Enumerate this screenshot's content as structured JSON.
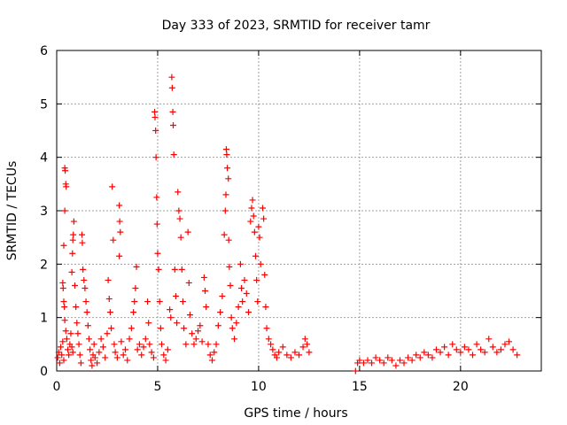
{
  "chart_data": {
    "type": "scatter",
    "title": "Day 333 of 2023, SRMTID for receiver tamr",
    "xlabel": "GPS time / hours",
    "ylabel": "SRMTID / TECUs",
    "xlim": [
      0,
      24
    ],
    "ylim": [
      0,
      6
    ],
    "xticks": [
      0,
      5,
      10,
      15,
      20
    ],
    "yticks": [
      0,
      1,
      2,
      3,
      4,
      5,
      6
    ],
    "grid": true,
    "marker": "+",
    "series": [
      {
        "name": "SRMTID",
        "color": "#ff0000",
        "points": [
          [
            0.05,
            0.25
          ],
          [
            0.1,
            0.35
          ],
          [
            0.15,
            0.15
          ],
          [
            0.2,
            0.45
          ],
          [
            0.25,
            0.3
          ],
          [
            0.3,
            0.55
          ],
          [
            0.35,
            0.2
          ],
          [
            0.4,
            3.8
          ],
          [
            0.42,
            3.75
          ],
          [
            0.45,
            3.5
          ],
          [
            0.47,
            3.45
          ],
          [
            0.4,
            3.0
          ],
          [
            0.35,
            2.35
          ],
          [
            0.3,
            1.65
          ],
          [
            0.32,
            1.55
          ],
          [
            0.35,
            1.3
          ],
          [
            0.38,
            1.2
          ],
          [
            0.4,
            0.95
          ],
          [
            0.45,
            0.75
          ],
          [
            0.5,
            0.6
          ],
          [
            0.55,
            0.4
          ],
          [
            0.6,
            0.3
          ],
          [
            0.65,
            0.5
          ],
          [
            0.7,
            0.7
          ],
          [
            0.75,
            0.45
          ],
          [
            0.8,
            0.35
          ],
          [
            0.85,
            2.8
          ],
          [
            0.82,
            2.55
          ],
          [
            0.8,
            2.45
          ],
          [
            0.78,
            2.2
          ],
          [
            0.75,
            1.85
          ],
          [
            0.9,
            1.6
          ],
          [
            0.95,
            1.2
          ],
          [
            1.0,
            0.9
          ],
          [
            1.05,
            0.7
          ],
          [
            1.1,
            0.5
          ],
          [
            1.15,
            0.3
          ],
          [
            1.2,
            0.15
          ],
          [
            1.25,
            2.55
          ],
          [
            1.27,
            2.4
          ],
          [
            1.3,
            1.9
          ],
          [
            1.35,
            1.7
          ],
          [
            1.4,
            1.55
          ],
          [
            1.45,
            1.3
          ],
          [
            1.5,
            1.1
          ],
          [
            1.55,
            0.85
          ],
          [
            1.6,
            0.6
          ],
          [
            1.65,
            0.4
          ],
          [
            1.7,
            0.2
          ],
          [
            1.75,
            0.1
          ],
          [
            1.8,
            0.3
          ],
          [
            1.85,
            0.5
          ],
          [
            1.9,
            0.25
          ],
          [
            2.0,
            0.15
          ],
          [
            2.1,
            0.35
          ],
          [
            2.2,
            0.6
          ],
          [
            2.3,
            0.45
          ],
          [
            2.4,
            0.25
          ],
          [
            2.5,
            0.7
          ],
          [
            2.55,
            1.7
          ],
          [
            2.6,
            1.35
          ],
          [
            2.65,
            1.1
          ],
          [
            2.7,
            0.8
          ],
          [
            2.75,
            3.45
          ],
          [
            2.8,
            2.45
          ],
          [
            2.85,
            0.5
          ],
          [
            2.9,
            0.35
          ],
          [
            3.0,
            0.25
          ],
          [
            3.1,
            3.1
          ],
          [
            3.12,
            2.8
          ],
          [
            3.15,
            2.6
          ],
          [
            3.1,
            2.15
          ],
          [
            3.2,
            0.55
          ],
          [
            3.3,
            0.3
          ],
          [
            3.4,
            0.4
          ],
          [
            3.5,
            0.2
          ],
          [
            3.6,
            0.6
          ],
          [
            3.7,
            0.8
          ],
          [
            3.8,
            1.1
          ],
          [
            3.85,
            1.3
          ],
          [
            3.9,
            1.55
          ],
          [
            3.95,
            1.95
          ],
          [
            4.0,
            0.4
          ],
          [
            4.1,
            0.5
          ],
          [
            4.2,
            0.3
          ],
          [
            4.3,
            0.45
          ],
          [
            4.4,
            0.6
          ],
          [
            4.5,
            1.3
          ],
          [
            4.55,
            0.9
          ],
          [
            4.6,
            0.5
          ],
          [
            4.7,
            0.35
          ],
          [
            4.8,
            0.25
          ],
          [
            4.85,
            4.85
          ],
          [
            4.87,
            4.75
          ],
          [
            4.9,
            4.5
          ],
          [
            4.92,
            4.0
          ],
          [
            4.95,
            3.25
          ],
          [
            4.97,
            2.75
          ],
          [
            5.0,
            2.2
          ],
          [
            5.05,
            1.9
          ],
          [
            5.1,
            1.3
          ],
          [
            5.15,
            0.8
          ],
          [
            5.2,
            0.5
          ],
          [
            5.3,
            0.3
          ],
          [
            5.4,
            0.2
          ],
          [
            5.5,
            0.4
          ],
          [
            5.6,
            1.15
          ],
          [
            5.65,
            1.0
          ],
          [
            5.7,
            5.5
          ],
          [
            5.72,
            5.3
          ],
          [
            5.75,
            4.85
          ],
          [
            5.77,
            4.6
          ],
          [
            5.8,
            4.05
          ],
          [
            5.85,
            1.9
          ],
          [
            5.9,
            1.4
          ],
          [
            5.95,
            0.9
          ],
          [
            6.0,
            3.35
          ],
          [
            6.05,
            3.0
          ],
          [
            6.1,
            2.85
          ],
          [
            6.15,
            2.5
          ],
          [
            6.2,
            1.9
          ],
          [
            6.25,
            1.3
          ],
          [
            6.3,
            0.8
          ],
          [
            6.4,
            0.5
          ],
          [
            6.5,
            2.6
          ],
          [
            6.55,
            1.65
          ],
          [
            6.6,
            1.05
          ],
          [
            6.7,
            0.7
          ],
          [
            6.8,
            0.5
          ],
          [
            6.9,
            0.6
          ],
          [
            7.0,
            0.75
          ],
          [
            7.1,
            0.85
          ],
          [
            7.2,
            0.55
          ],
          [
            7.3,
            1.75
          ],
          [
            7.35,
            1.5
          ],
          [
            7.4,
            1.2
          ],
          [
            7.5,
            0.5
          ],
          [
            7.6,
            0.3
          ],
          [
            7.7,
            0.2
          ],
          [
            7.8,
            0.35
          ],
          [
            7.9,
            0.5
          ],
          [
            8.0,
            0.85
          ],
          [
            8.1,
            1.1
          ],
          [
            8.2,
            1.4
          ],
          [
            8.3,
            2.55
          ],
          [
            8.35,
            3.0
          ],
          [
            8.38,
            3.3
          ],
          [
            8.4,
            4.15
          ],
          [
            8.42,
            4.05
          ],
          [
            8.45,
            3.8
          ],
          [
            8.5,
            3.6
          ],
          [
            8.52,
            2.45
          ],
          [
            8.55,
            1.95
          ],
          [
            8.6,
            1.6
          ],
          [
            8.65,
            1.0
          ],
          [
            8.7,
            0.8
          ],
          [
            8.8,
            0.6
          ],
          [
            8.9,
            0.9
          ],
          [
            9.0,
            1.2
          ],
          [
            9.1,
            2.0
          ],
          [
            9.15,
            1.55
          ],
          [
            9.2,
            1.3
          ],
          [
            9.3,
            1.7
          ],
          [
            9.4,
            1.45
          ],
          [
            9.5,
            1.1
          ],
          [
            9.6,
            2.8
          ],
          [
            9.65,
            3.05
          ],
          [
            9.7,
            3.2
          ],
          [
            9.75,
            2.9
          ],
          [
            9.8,
            2.6
          ],
          [
            9.85,
            2.15
          ],
          [
            9.9,
            1.7
          ],
          [
            9.95,
            1.3
          ],
          [
            10.0,
            2.7
          ],
          [
            10.05,
            2.5
          ],
          [
            10.1,
            2.0
          ],
          [
            10.2,
            3.05
          ],
          [
            10.25,
            2.85
          ],
          [
            10.3,
            1.8
          ],
          [
            10.35,
            1.2
          ],
          [
            10.4,
            0.8
          ],
          [
            10.5,
            0.6
          ],
          [
            10.6,
            0.5
          ],
          [
            10.7,
            0.4
          ],
          [
            10.8,
            0.3
          ],
          [
            10.9,
            0.25
          ],
          [
            11.0,
            0.35
          ],
          [
            11.2,
            0.45
          ],
          [
            11.4,
            0.3
          ],
          [
            11.6,
            0.25
          ],
          [
            11.8,
            0.35
          ],
          [
            12.0,
            0.3
          ],
          [
            12.2,
            0.45
          ],
          [
            12.3,
            0.6
          ],
          [
            12.4,
            0.5
          ],
          [
            12.5,
            0.35
          ],
          [
            14.8,
            0.0
          ],
          [
            14.9,
            0.15
          ],
          [
            15.0,
            0.2
          ],
          [
            15.2,
            0.15
          ],
          [
            15.4,
            0.2
          ],
          [
            15.6,
            0.15
          ],
          [
            15.8,
            0.25
          ],
          [
            16.0,
            0.2
          ],
          [
            16.2,
            0.15
          ],
          [
            16.4,
            0.25
          ],
          [
            16.6,
            0.2
          ],
          [
            16.8,
            0.1
          ],
          [
            17.0,
            0.2
          ],
          [
            17.2,
            0.15
          ],
          [
            17.4,
            0.25
          ],
          [
            17.6,
            0.2
          ],
          [
            17.8,
            0.3
          ],
          [
            18.0,
            0.25
          ],
          [
            18.2,
            0.35
          ],
          [
            18.4,
            0.3
          ],
          [
            18.6,
            0.25
          ],
          [
            18.8,
            0.4
          ],
          [
            19.0,
            0.35
          ],
          [
            19.2,
            0.45
          ],
          [
            19.4,
            0.3
          ],
          [
            19.6,
            0.5
          ],
          [
            19.8,
            0.4
          ],
          [
            20.0,
            0.35
          ],
          [
            20.2,
            0.45
          ],
          [
            20.4,
            0.4
          ],
          [
            20.6,
            0.3
          ],
          [
            20.8,
            0.5
          ],
          [
            21.0,
            0.4
          ],
          [
            21.2,
            0.35
          ],
          [
            21.4,
            0.6
          ],
          [
            21.6,
            0.45
          ],
          [
            21.8,
            0.35
          ],
          [
            22.0,
            0.4
          ],
          [
            22.2,
            0.5
          ],
          [
            22.4,
            0.55
          ],
          [
            22.6,
            0.4
          ],
          [
            22.8,
            0.3
          ]
        ]
      }
    ]
  }
}
